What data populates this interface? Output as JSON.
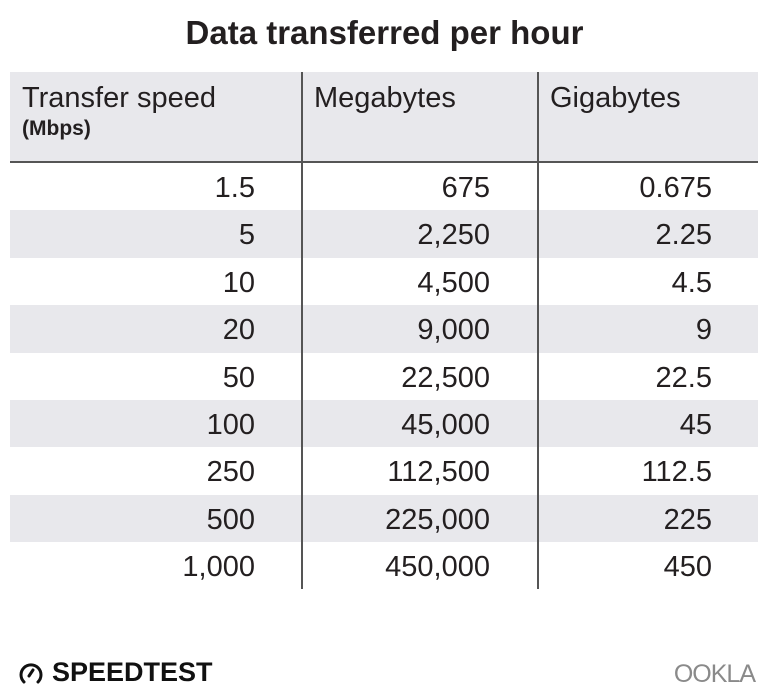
{
  "title": "Data transferred per hour",
  "chart_data": {
    "type": "table",
    "title": "Data transferred per hour",
    "columns": [
      {
        "label": "Transfer speed",
        "unit": "(Mbps)"
      },
      {
        "label": "Megabytes"
      },
      {
        "label": "Gigabytes"
      }
    ],
    "rows": [
      [
        "1.5",
        "675",
        "0.675"
      ],
      [
        "5",
        "2,250",
        "2.25"
      ],
      [
        "10",
        "4,500",
        "4.5"
      ],
      [
        "20",
        "9,000",
        "9"
      ],
      [
        "50",
        "22,500",
        "22.5"
      ],
      [
        "100",
        "45,000",
        "45"
      ],
      [
        "250",
        "112,500",
        "112.5"
      ],
      [
        "500",
        "225,000",
        "225"
      ],
      [
        "1,000",
        "450,000",
        "450"
      ]
    ]
  },
  "footer": {
    "left_logo": "SPEEDTEST",
    "right_logo": "OOKLA",
    "left_icon": "speedometer-icon"
  },
  "colors": {
    "shade": "#e8e8ec",
    "text": "#231f20",
    "rule": "#555555"
  }
}
